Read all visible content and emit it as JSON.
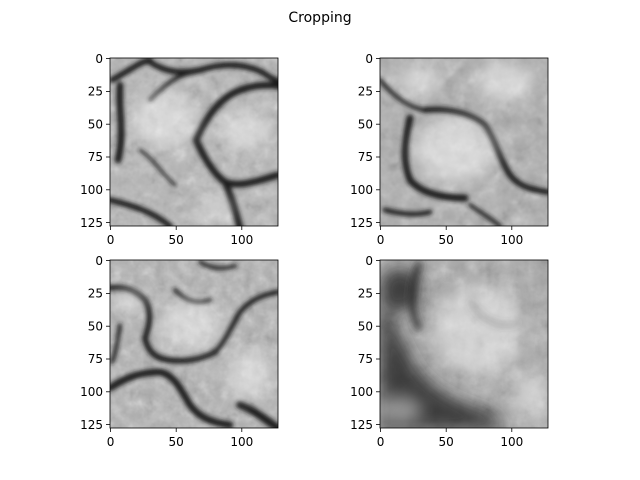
{
  "figure": {
    "title": "Cropping",
    "panels": [
      {
        "id": "top-left",
        "x_ticks": [
          "0",
          "50",
          "100"
        ],
        "y_ticks": [
          "0",
          "25",
          "50",
          "75",
          "100",
          "125"
        ],
        "content": "grayscale crop of a stone/cell texture with dark branching boundaries"
      },
      {
        "id": "top-right",
        "x_ticks": [
          "0",
          "50",
          "100"
        ],
        "y_ticks": [
          "0",
          "25",
          "50",
          "75",
          "100",
          "125"
        ],
        "content": "grayscale crop showing an oval lighter region outlined by a dark curve"
      },
      {
        "id": "bottom-left",
        "x_ticks": [
          "0",
          "50",
          "100"
        ],
        "y_ticks": [
          "0",
          "25",
          "50",
          "75",
          "100",
          "125"
        ],
        "content": "grayscale crop with dark curved cracks forming cell-like shapes"
      },
      {
        "id": "bottom-right",
        "x_ticks": [
          "0",
          "50",
          "100"
        ],
        "y_ticks": [
          "0",
          "25",
          "50",
          "75",
          "100",
          "125"
        ],
        "content": "grayscale crop with large dark band in the lower-left and mottled texture"
      }
    ]
  },
  "colors": {
    "background": "#ffffff",
    "axes": "#000000"
  }
}
